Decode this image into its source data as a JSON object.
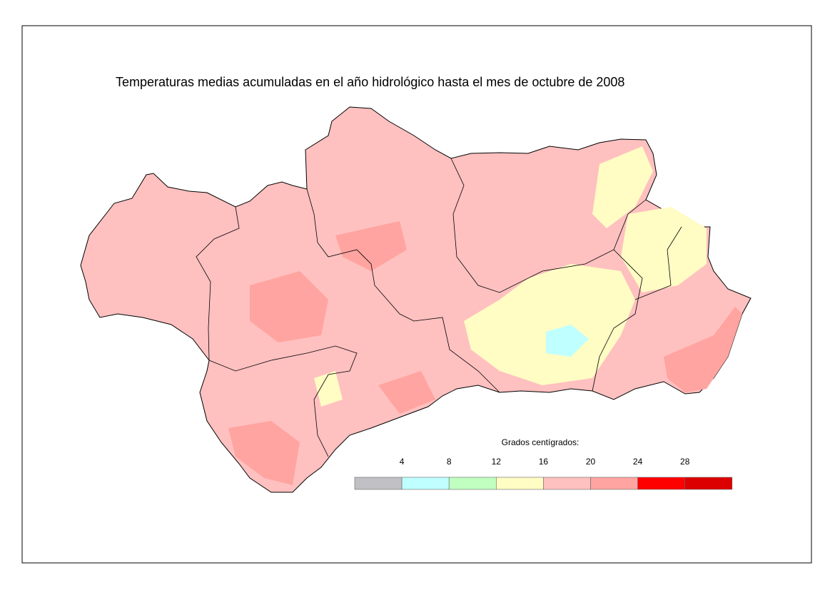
{
  "title": "Temperaturas medias acumuladas en el año hidrológico hasta el mes de octubre de 2008",
  "legend": {
    "title": "Grados centígrados:",
    "ticks": [
      4,
      8,
      12,
      16,
      20,
      24,
      28
    ],
    "colors": [
      "#c0c0c4",
      "#c0ffff",
      "#c0ffc0",
      "#fffcc4",
      "#ffc0c0",
      "#ffa4a0",
      "#ff0000",
      "#dc0000"
    ]
  }
}
